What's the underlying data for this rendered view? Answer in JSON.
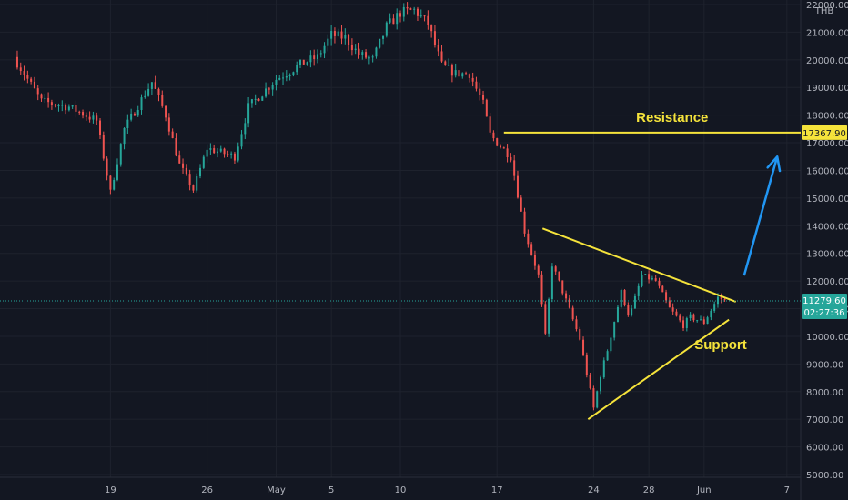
{
  "chart_data": {
    "type": "candlestick",
    "currency": "THB",
    "y_axis": {
      "min": 5000,
      "max": 22000,
      "ticks": [
        "22000.00",
        "21000.00",
        "20000.00",
        "19000.00",
        "18000.00",
        "17000.00",
        "16000.00",
        "15000.00",
        "14000.00",
        "13000.00",
        "12000.00",
        "11000.00",
        "10000.00",
        "9000.00",
        "8000.00",
        "7000.00",
        "6000.00",
        "5000.00"
      ],
      "tick_values": [
        22000,
        21000,
        20000,
        19000,
        18000,
        17000,
        16000,
        15000,
        14000,
        13000,
        12000,
        11000,
        10000,
        9000,
        8000,
        7000,
        6000,
        5000
      ]
    },
    "x_axis": {
      "labels": [
        "19",
        "26",
        "May",
        "5",
        "10",
        "17",
        "24",
        "28",
        "Jun",
        "7"
      ],
      "label_days": [
        0,
        7,
        12,
        16,
        21,
        28,
        35,
        39,
        43,
        49
      ]
    },
    "day_range": [
      -8,
      50
    ],
    "colors": {
      "up": "#26a69a",
      "down": "#ef5350",
      "annotation": "#f5e33b",
      "arrow": "#2196f3",
      "current_price": "#26a69a",
      "background": "#131722",
      "grid": "#1e222d"
    },
    "price_path": [
      [
        -7,
        20100
      ],
      [
        -5,
        18500
      ],
      [
        -3,
        18300
      ],
      [
        -1,
        17800
      ],
      [
        0,
        15200
      ],
      [
        1,
        17500
      ],
      [
        3,
        19200
      ],
      [
        4,
        18000
      ],
      [
        5,
        16200
      ],
      [
        6,
        15300
      ],
      [
        7,
        16800
      ],
      [
        9,
        16500
      ],
      [
        10,
        18300
      ],
      [
        12,
        19300
      ],
      [
        14,
        19900
      ],
      [
        15,
        20100
      ],
      [
        16,
        20900
      ],
      [
        17,
        20800
      ],
      [
        18,
        20200
      ],
      [
        19,
        20000
      ],
      [
        20,
        21200
      ],
      [
        21,
        21700
      ],
      [
        22,
        21800
      ],
      [
        23,
        21300
      ],
      [
        24,
        19800
      ],
      [
        25,
        19500
      ],
      [
        26,
        19500
      ],
      [
        27,
        18400
      ],
      [
        27.5,
        17300
      ],
      [
        28,
        17000
      ],
      [
        29,
        16500
      ],
      [
        30,
        13800
      ],
      [
        31,
        12200
      ],
      [
        31.5,
        10000
      ],
      [
        32,
        12600
      ],
      [
        33,
        11300
      ],
      [
        34,
        9900
      ],
      [
        35,
        7400
      ],
      [
        35.5,
        8600
      ],
      [
        36,
        9500
      ],
      [
        37,
        11600
      ],
      [
        37.6,
        10700
      ],
      [
        38.5,
        12200
      ],
      [
        39.5,
        12000
      ],
      [
        40.5,
        11000
      ],
      [
        41.5,
        10400
      ],
      [
        42,
        10700
      ],
      [
        43,
        10500
      ],
      [
        44,
        11400
      ],
      [
        44.7,
        11280
      ]
    ],
    "current_price": {
      "value": 11279.6,
      "label": "11279.60",
      "timer": "02:27:36"
    },
    "resistance": {
      "label": "Resistance",
      "value": 17367.9,
      "value_label": "17367.90",
      "from_day": 28.5
    },
    "support_label": "Support",
    "triangle": {
      "upper": {
        "from": [
          31.3,
          13900
        ],
        "to": [
          45.3,
          11250
        ]
      },
      "lower": {
        "from": [
          34.6,
          7000
        ],
        "to": [
          44.8,
          10600
        ]
      }
    },
    "breakout_arrow": {
      "from": [
        45.9,
        12200
      ],
      "to": [
        48.3,
        16500
      ]
    }
  }
}
